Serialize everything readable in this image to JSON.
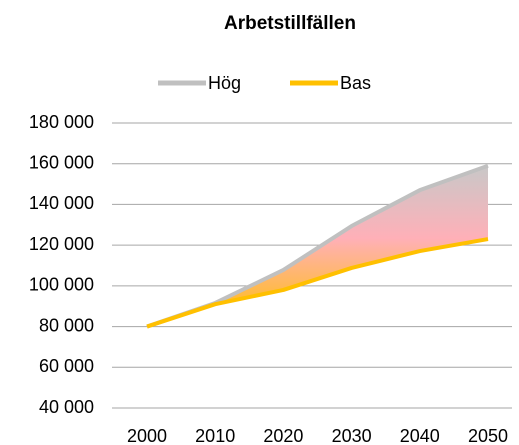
{
  "chart_data": {
    "type": "line",
    "title": "Arbetstillfällen",
    "categories": [
      "2000",
      "2010",
      "2020",
      "2030",
      "2040",
      "2050"
    ],
    "series": [
      {
        "name": "Hög",
        "color": "#c0c0c0",
        "values": [
          80000,
          91600,
          107800,
          129400,
          147000,
          159000
        ]
      },
      {
        "name": "Bas",
        "color": "#ffc000",
        "values": [
          80000,
          91000,
          98000,
          108800,
          117100,
          123000
        ]
      }
    ],
    "ylim": [
      40000,
      180000
    ],
    "yticks": [
      {
        "value": 40000,
        "label": "40 000"
      },
      {
        "value": 60000,
        "label": "60 000"
      },
      {
        "value": 80000,
        "label": "80 000"
      },
      {
        "value": 100000,
        "label": "100 000"
      },
      {
        "value": 120000,
        "label": "120 000"
      },
      {
        "value": 140000,
        "label": "140 000"
      },
      {
        "value": 160000,
        "label": "160 000"
      },
      {
        "value": 180000,
        "label": "180 000"
      }
    ],
    "grid": true,
    "legend": "top"
  }
}
